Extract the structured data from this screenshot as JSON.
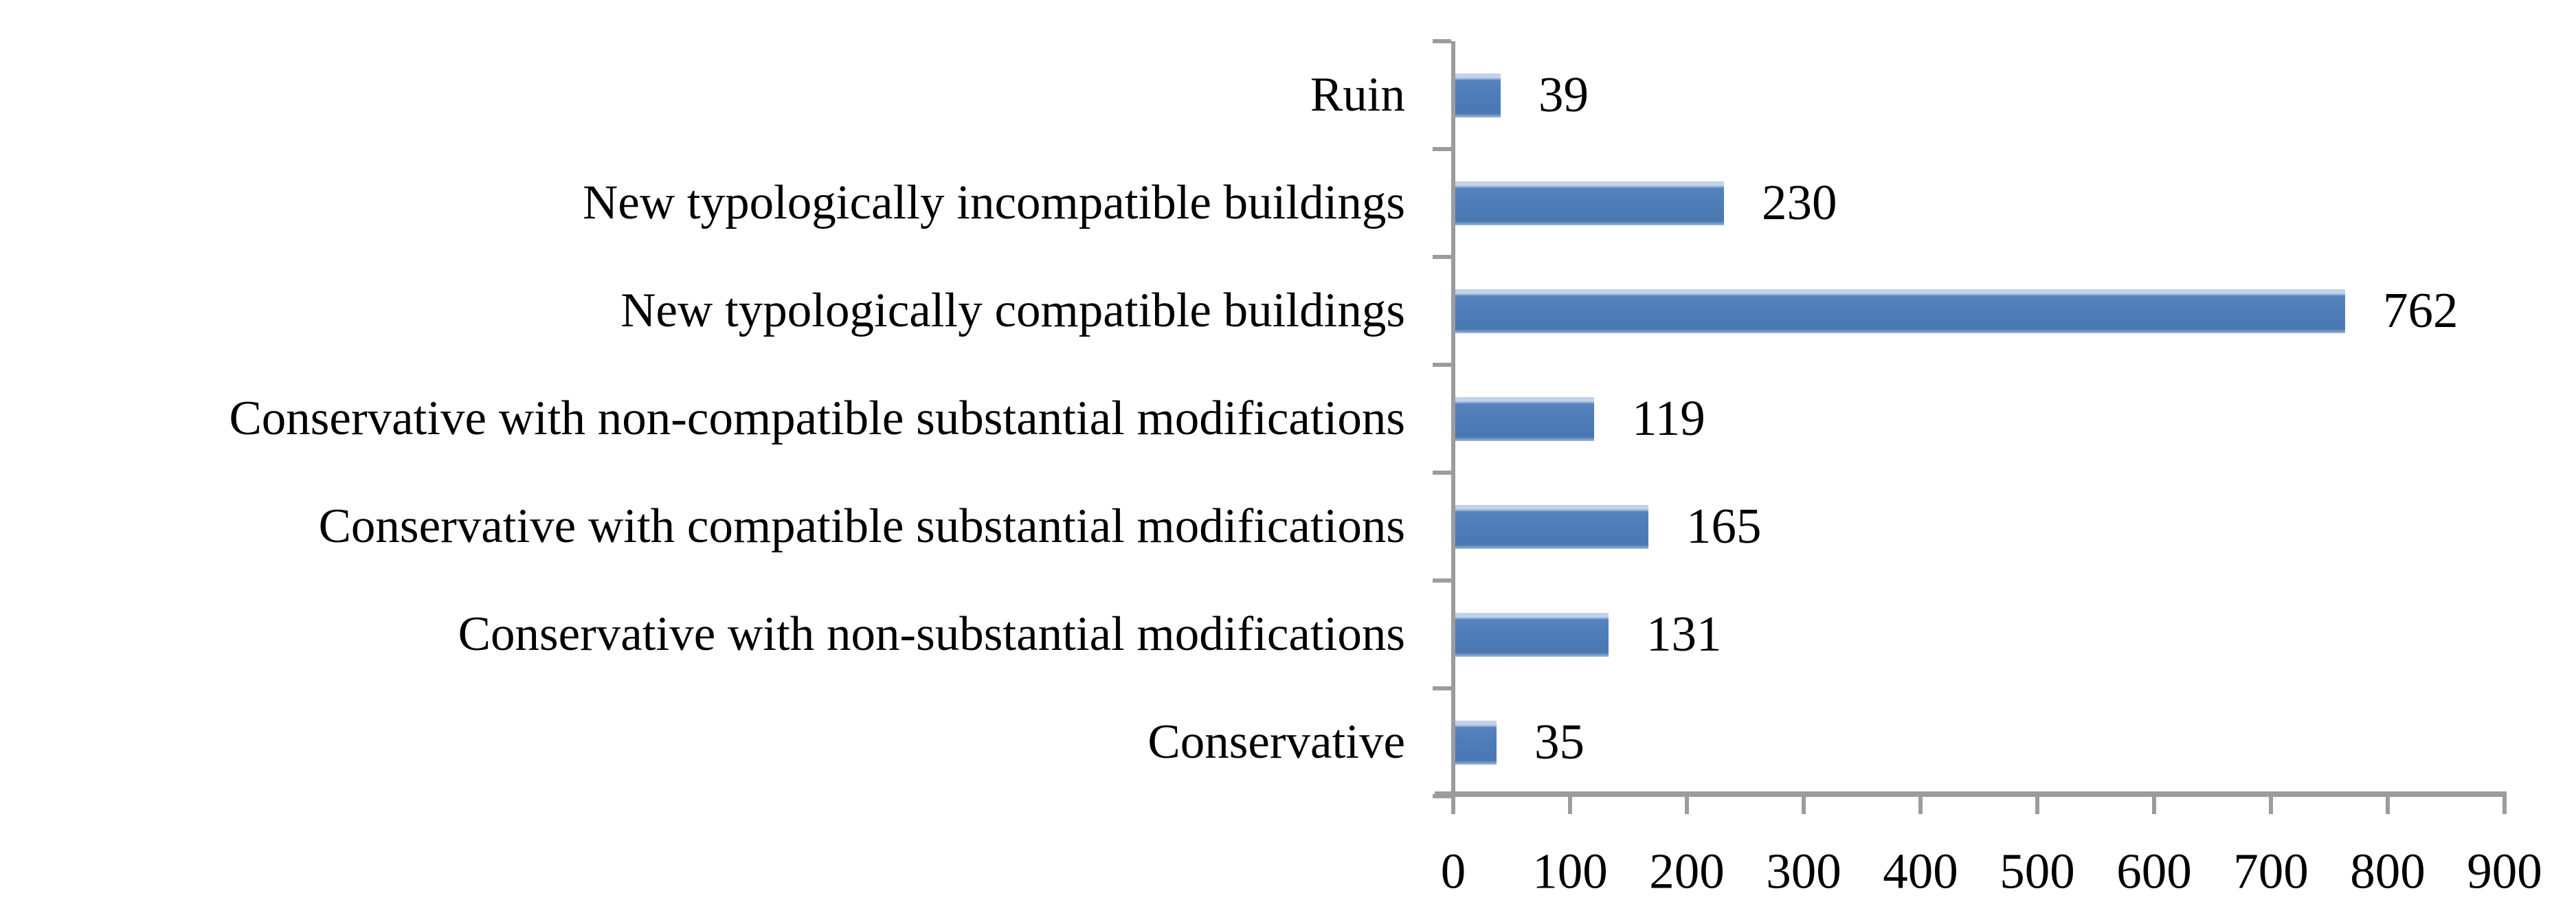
{
  "chart_data": {
    "type": "bar",
    "orientation": "horizontal",
    "title": "",
    "xlabel": "",
    "ylabel": "",
    "categories": [
      "Ruin",
      "New typologically incompatible buildings",
      "New typologically compatible buildings",
      "Conservative with non-compatible substantial modifications",
      "Conservative with compatible substantial modifications",
      "Conservative with non-substantial modifications",
      "Conservative"
    ],
    "values": [
      39,
      230,
      762,
      119,
      165,
      131,
      35
    ],
    "value_labels": [
      "39",
      "230",
      "762",
      "119",
      "165",
      "131",
      "35"
    ],
    "x_ticks": [
      "0",
      "100",
      "200",
      "300",
      "400",
      "500",
      "600",
      "700",
      "800",
      "900"
    ],
    "xlim": [
      0,
      900
    ],
    "grid": false,
    "legend": false,
    "data_labels_position": "end-of-bar",
    "bar_color": "#4e7db8",
    "bar_highlight_color": "#c3d2e8",
    "axis_color": "#9c9c9c",
    "text_color": "#000000",
    "background_color": "#ffffff"
  }
}
